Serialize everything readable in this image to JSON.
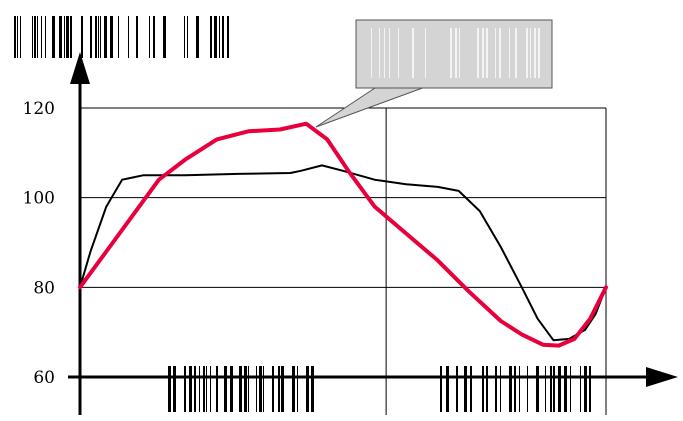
{
  "chart_data": {
    "type": "line",
    "title": "",
    "xlabel": "",
    "ylabel": "",
    "ylim": [
      60,
      120
    ],
    "yticks": [
      60,
      80,
      100,
      120
    ],
    "grid": true,
    "colors": {
      "black": "#000000",
      "red": "#e8003c",
      "callout": "#d4d4d4"
    },
    "series": [
      {
        "color": "#000000",
        "points": [
          [
            0,
            80
          ],
          [
            2,
            88
          ],
          [
            5,
            98
          ],
          [
            8,
            104
          ],
          [
            12,
            105
          ],
          [
            20,
            105
          ],
          [
            30,
            105.3
          ],
          [
            40,
            105.5
          ],
          [
            42,
            106
          ],
          [
            46,
            107.2
          ],
          [
            50,
            106
          ],
          [
            56,
            104
          ],
          [
            62,
            103
          ],
          [
            68,
            102.4
          ],
          [
            72,
            101.5
          ],
          [
            76,
            97
          ],
          [
            80,
            89
          ],
          [
            84,
            80
          ],
          [
            87,
            73
          ],
          [
            90,
            68.2
          ],
          [
            93,
            68.5
          ],
          [
            96,
            70.5
          ],
          [
            98,
            74
          ],
          [
            100,
            80
          ]
        ]
      },
      {
        "color": "#e8003c",
        "points": [
          [
            0,
            80
          ],
          [
            5,
            88
          ],
          [
            10,
            96
          ],
          [
            15,
            104
          ],
          [
            20,
            108.5
          ],
          [
            26,
            113
          ],
          [
            32,
            114.8
          ],
          [
            38,
            115.2
          ],
          [
            43,
            116.5
          ],
          [
            47,
            113
          ],
          [
            51,
            106
          ],
          [
            56,
            98
          ],
          [
            62,
            92
          ],
          [
            68,
            86
          ],
          [
            74,
            79
          ],
          [
            80,
            72.5
          ],
          [
            84,
            69.5
          ],
          [
            88,
            67.2
          ],
          [
            91,
            67
          ],
          [
            94,
            68.5
          ],
          [
            97,
            73
          ],
          [
            100,
            80
          ]
        ]
      }
    ],
    "annotation": {
      "target": [
        43,
        116.5
      ]
    }
  }
}
